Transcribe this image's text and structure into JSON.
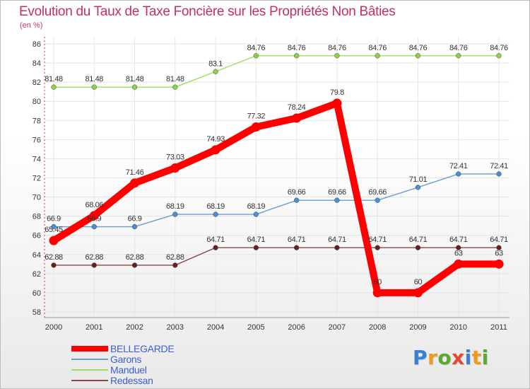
{
  "header": {
    "title": "Evolution du Taux de Taxe Foncière sur les Propriétés Non Bâties",
    "subtitle": "(en %)"
  },
  "logo": {
    "text": "Proxiti",
    "colors": [
      "#3b7fd0",
      "#f09a1c",
      "#5aaa2e",
      "#e8462e",
      "#3b7fd0",
      "#f09a1c",
      "#5aaa2e"
    ]
  },
  "chart_data": {
    "type": "line",
    "title": "Evolution du Taux de Taxe Foncière sur les Propriétés Non Bâties",
    "ylabel": "(en %)",
    "xlabel": "",
    "categories": [
      "2000",
      "2001",
      "2002",
      "2003",
      "2004",
      "2005",
      "2006",
      "2007",
      "2008",
      "2009",
      "2010",
      "2011"
    ],
    "ylim": [
      58,
      86
    ],
    "yticks": [
      58,
      60,
      62,
      64,
      66,
      68,
      70,
      72,
      74,
      76,
      78,
      80,
      82,
      84,
      86
    ],
    "grid": true,
    "legend_position": "bottom-left",
    "series": [
      {
        "name": "BELLEGARDE",
        "color": "#ff0000",
        "thick": true,
        "values": [
          65.45,
          68.06,
          71.46,
          73.03,
          74.93,
          77.32,
          78.24,
          79.8,
          60,
          60,
          63,
          63
        ],
        "labels": [
          "65.45",
          "68.06",
          "71.46",
          "73.03",
          "74.93",
          "77.32",
          "78.24",
          "79.8",
          "60",
          "60",
          "63",
          "63"
        ]
      },
      {
        "name": "Garons",
        "color": "#6c9fd0",
        "marker": "#4a8ed6",
        "thick": false,
        "values": [
          66.9,
          66.9,
          66.9,
          68.19,
          68.19,
          68.19,
          69.66,
          69.66,
          69.66,
          71.01,
          72.41,
          72.41
        ],
        "labels": [
          "66.9",
          "66.9",
          "66.9",
          "68.19",
          "68.19",
          "68.19",
          "69.66",
          "69.66",
          "69.66",
          "71.01",
          "72.41",
          "72.41"
        ]
      },
      {
        "name": "Manduel",
        "color": "#9adf5c",
        "marker": "#8ad443",
        "thick": false,
        "values": [
          81.48,
          81.48,
          81.48,
          81.48,
          83.1,
          84.76,
          84.76,
          84.76,
          84.76,
          84.76,
          84.76,
          84.76
        ],
        "labels": [
          "81.48",
          "81.48",
          "81.48",
          "81.48",
          "83.1",
          "84.76",
          "84.76",
          "84.76",
          "84.76",
          "84.76",
          "84.76",
          "84.76"
        ]
      },
      {
        "name": "Redessan",
        "color": "#884848",
        "marker": "#6a1f1f",
        "thick": false,
        "values": [
          62.88,
          62.88,
          62.88,
          62.88,
          64.71,
          64.71,
          64.71,
          64.71,
          64.71,
          64.71,
          64.71,
          64.71
        ],
        "labels": [
          "62.88",
          "62.88",
          "62.88",
          "62.88",
          "64.71",
          "64.71",
          "64.71",
          "64.71",
          "64.71",
          "64.71",
          "64.71",
          "64.71"
        ]
      }
    ]
  }
}
